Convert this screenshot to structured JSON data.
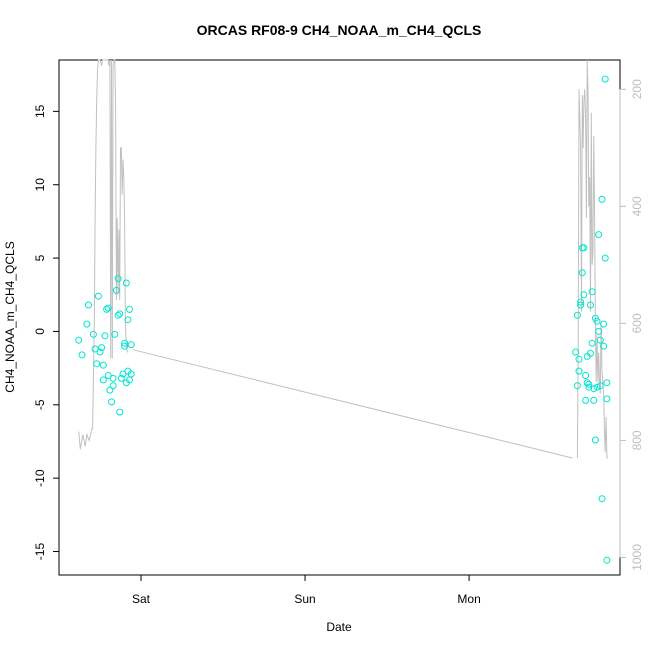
{
  "chart_data": {
    "type": "scatter",
    "title": "ORCAS RF08-9 CH4_NOAA_m_CH4_QCLS",
    "xlabel": "Date",
    "ylabel": "CH4_NOAA_m_CH4_QCLS",
    "x_ticks": [
      {
        "label": "Sat",
        "value": 1.0
      },
      {
        "label": "Sun",
        "value": 2.0
      },
      {
        "label": "Mon",
        "value": 3.0
      }
    ],
    "y_ticks": [
      -15,
      -10,
      -5,
      0,
      5,
      10,
      15
    ],
    "y_tick_labels": [
      "-15",
      "-10",
      "-5",
      "0",
      "5",
      "10",
      "15"
    ],
    "ylim": [
      -16.6,
      18.5
    ],
    "xlim": [
      0.5,
      3.92
    ],
    "y2_ticks": [
      200,
      400,
      600,
      800,
      1000
    ],
    "y2_tick_labels": [
      "200",
      "400",
      "600",
      "800",
      "1000"
    ],
    "y2lim": [
      1030,
      150
    ],
    "grid": false,
    "colors": {
      "points": "#00e5d0",
      "pressure_line": "#c0c0c0",
      "axis": "#000000",
      "right_axis": "#bdbdbd"
    },
    "series": [
      {
        "type": "scatter",
        "x": [
          0.62,
          0.64,
          0.67,
          0.68,
          0.71,
          0.72,
          0.73,
          0.74,
          0.75,
          0.76,
          0.77,
          0.77,
          0.78,
          0.79,
          0.8,
          0.8,
          0.81,
          0.82,
          0.83,
          0.83,
          0.84,
          0.85,
          0.86,
          0.86,
          0.87,
          0.87,
          0.88,
          0.89,
          0.9,
          0.9,
          0.91,
          0.91,
          0.92,
          0.92,
          0.93,
          0.93,
          0.94,
          0.94,
          3.65,
          3.66,
          3.66,
          3.67,
          3.67,
          3.68,
          3.68,
          3.69,
          3.69,
          3.7,
          3.7,
          3.71,
          3.71,
          3.72,
          3.72,
          3.73,
          3.73,
          3.74,
          3.74,
          3.75,
          3.75,
          3.76,
          3.76,
          3.77,
          3.77,
          3.78,
          3.78,
          3.79,
          3.79,
          3.8,
          3.8,
          3.81,
          3.81,
          3.82,
          3.82
        ],
        "y": [
          -0.6,
          -1.6,
          0.5,
          1.8,
          -0.2,
          -1.2,
          -2.2,
          2.4,
          -1.4,
          -1.1,
          -2.3,
          -3.3,
          -0.3,
          1.5,
          -3.0,
          1.6,
          -4.0,
          -4.8,
          -3.7,
          -3.2,
          -0.2,
          2.8,
          3.6,
          1.1,
          1.2,
          -5.5,
          -3.2,
          -2.9,
          -0.8,
          -1.0,
          3.3,
          -3.5,
          -2.7,
          0.8,
          1.5,
          -3.3,
          -2.9,
          -0.9,
          -1.4,
          -3.7,
          1.1,
          -2.7,
          -1.9,
          2.0,
          1.8,
          5.7,
          4.0,
          5.7,
          2.5,
          -3.0,
          -4.7,
          -1.7,
          -3.5,
          -3.8,
          -3.6,
          -1.5,
          1.8,
          -0.8,
          2.7,
          -3.9,
          -4.7,
          0.9,
          -7.4,
          -3.8,
          0.7,
          0.0,
          6.6,
          -0.6,
          -3.7,
          -11.4,
          9.0,
          -1.0,
          0.5
        ],
        "extra_points": [
          {
            "x": 3.83,
            "y": 17.2
          },
          {
            "x": 3.83,
            "y": 5.0
          },
          {
            "x": 3.84,
            "y": -15.6
          },
          {
            "x": 3.84,
            "y": -4.6
          },
          {
            "x": 3.84,
            "y": -3.5
          }
        ]
      },
      {
        "type": "line",
        "axis": "right",
        "x": [
          0.62,
          0.63,
          0.645,
          0.66,
          0.67,
          0.685,
          0.7,
          0.705,
          0.715,
          0.72,
          0.725,
          0.73,
          0.735,
          0.74,
          0.75,
          0.76,
          0.765,
          0.77,
          0.78,
          0.785,
          0.79,
          0.8,
          0.805,
          0.81,
          0.815,
          0.82,
          0.825,
          0.83,
          0.835,
          0.84,
          0.845,
          0.85,
          0.855,
          0.86,
          0.865,
          0.87,
          0.875,
          0.88,
          0.885,
          0.89,
          0.895,
          0.9,
          0.905,
          0.91,
          0.915,
          0.92,
          3.66,
          3.665,
          3.67,
          3.675,
          3.68,
          3.685,
          3.69,
          3.695,
          3.7,
          3.705,
          3.71,
          3.715,
          3.72,
          3.725,
          3.73,
          3.735,
          3.74,
          3.745,
          3.75,
          3.755,
          3.76,
          3.765,
          3.77,
          3.775,
          3.78,
          3.785,
          3.79,
          3.795,
          3.8,
          3.805,
          3.81,
          3.815,
          3.82,
          3.825,
          3.83,
          3.835,
          3.84,
          3.845
        ],
        "y": [
          785,
          815,
          790,
          810,
          790,
          800,
          780,
          780,
          600,
          420,
          300,
          220,
          170,
          140,
          120,
          160,
          140,
          150,
          140,
          145,
          150,
          140,
          160,
          150,
          660,
          150,
          660,
          160,
          140,
          150,
          230,
          560,
          420,
          550,
          440,
          560,
          300,
          300,
          380,
          320,
          350,
          420,
          600,
          640,
          646,
          650,
          830,
          640,
          200,
          250,
          300,
          580,
          210,
          300,
          220,
          200,
          250,
          420,
          150,
          200,
          400,
          350,
          580,
          240,
          500,
          480,
          280,
          420,
          600,
          700,
          620,
          700,
          650,
          700,
          720,
          600,
          680,
          700,
          720,
          780,
          820,
          760,
          830,
          830
        ]
      }
    ],
    "pressure_link": {
      "x": [
        0.95,
        3.63
      ],
      "y": [
        645,
        830
      ]
    }
  }
}
